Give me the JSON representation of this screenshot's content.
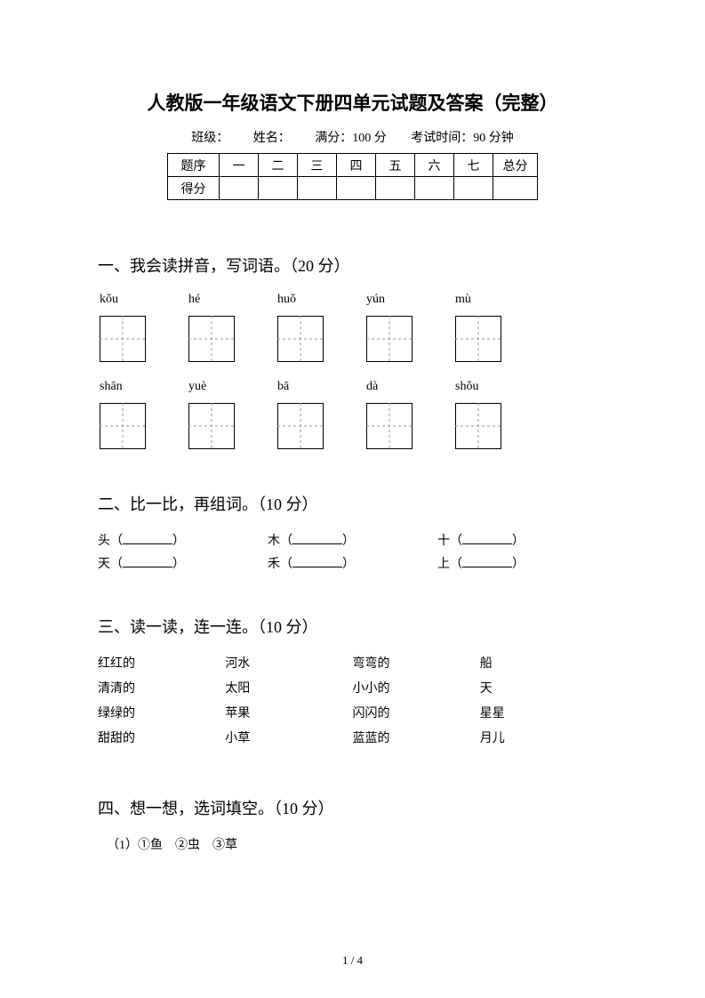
{
  "title": "人教版一年级语文下册四单元试题及答案（完整）",
  "meta": {
    "class_label": "班级：",
    "name_label": "姓名：",
    "full_score": "满分：100 分",
    "exam_time": "考试时间：90 分钟"
  },
  "score_table": {
    "row1_label": "题序",
    "row2_label": "得分",
    "cols": [
      "一",
      "二",
      "三",
      "四",
      "五",
      "六",
      "七"
    ],
    "total_label": "总分"
  },
  "s1": {
    "heading": "一、我会读拼音，写词语。（20 分）",
    "row1": [
      "kǒu",
      "hé",
      "huǒ",
      "yún",
      "mù"
    ],
    "row2": [
      "shān",
      "yuè",
      "bā",
      "dà",
      "shǒu"
    ],
    "box": {
      "size": 52,
      "border_color": "#000000",
      "dash_color": "#999999",
      "dash_pattern": "3,3"
    }
  },
  "s2": {
    "heading": "二、比一比，再组词。（10 分）",
    "rows": [
      [
        "头",
        "木",
        "十"
      ],
      [
        "天",
        "禾",
        "上"
      ]
    ]
  },
  "s3": {
    "heading": "三、读一读，连一连。（10 分）",
    "left_a": [
      "红红的",
      "清清的",
      "绿绿的",
      "甜甜的"
    ],
    "left_b": [
      "河水",
      "太阳",
      "苹果",
      "小草"
    ],
    "right_a": [
      "弯弯的",
      "小小的",
      "闪闪的",
      "蓝蓝的"
    ],
    "right_b": [
      "船",
      "天",
      "星星",
      "月儿"
    ]
  },
  "s4": {
    "heading": "四、想一想，选词填空。（10 分）",
    "line1": "（1）①鱼　②虫　③草"
  },
  "page_num": "1 / 4"
}
